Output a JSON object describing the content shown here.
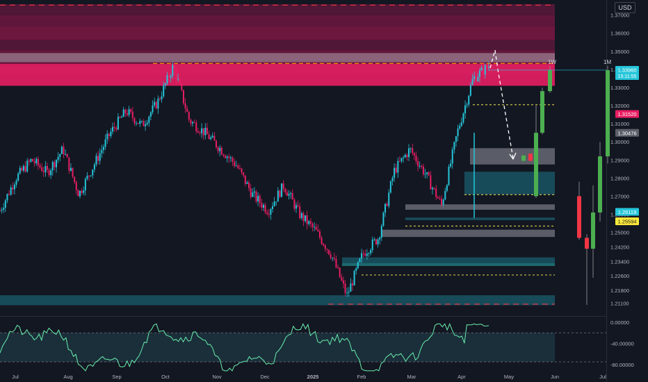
{
  "chart_data": {
    "type": "candlestick",
    "currency": "USD",
    "price_axis": {
      "min": 1.205,
      "max": 1.376,
      "ticks": [
        "1.37000",
        "1.36000",
        "1.35000",
        "1.34000",
        "1.33000",
        "1.32000",
        "1.31000",
        "1.30000",
        "1.29000",
        "1.28000",
        "1.27000",
        "1.26000",
        "1.25000",
        "1.24200",
        "1.23400",
        "1.22600",
        "1.21800",
        "1.21100"
      ]
    },
    "time_axis": {
      "labels": [
        "Jul",
        "Aug",
        "Sep",
        "Oct",
        "Nov",
        "Dec",
        "2025",
        "Feb",
        "Mar",
        "Apr",
        "May",
        "Jun",
        "Jul"
      ]
    },
    "price_badges": [
      {
        "value": "1.33960",
        "sub": "15:11:55",
        "price": 1.3396,
        "color": "#26c6da"
      },
      {
        "value": "1.31520",
        "price": 1.3152,
        "color": "#e91e63"
      },
      {
        "value": "1.30476",
        "price": 1.30476,
        "color": "#5d606b"
      },
      {
        "value": "1.26119",
        "price": 1.26119,
        "color": "#26c6da"
      },
      {
        "value": "1.25594",
        "price": 1.25594,
        "color": "#ffeb3b"
      }
    ],
    "timeframe_labels": [
      "1W",
      "1M"
    ],
    "supply_zone": {
      "from": 1.331,
      "to": 1.376,
      "color": "#e91e63"
    },
    "demand_zones": [
      {
        "from": 1.271,
        "to": 1.2835
      },
      {
        "from": 1.2568,
        "to": 1.2582
      },
      {
        "from": 1.2315,
        "to": 1.2362
      },
      {
        "from": 1.2098,
        "to": 1.2153
      }
    ],
    "grey_zones": [
      {
        "from": 1.2875,
        "to": 1.2965
      },
      {
        "from": 1.2625,
        "to": 1.2655
      },
      {
        "from": 1.2475,
        "to": 1.2515
      }
    ],
    "key_levels": [
      {
        "price": 1.3433,
        "style": "orange-dashed"
      },
      {
        "price": 1.3205,
        "style": "yellow-dashed"
      },
      {
        "price": 1.2708,
        "style": "yellow-dashed"
      },
      {
        "price": 1.2535,
        "style": "yellow-dashed"
      },
      {
        "price": 1.2265,
        "style": "yellow-dashed"
      },
      {
        "price": 1.2104,
        "style": "red-dashed"
      },
      {
        "price": 1.3755,
        "style": "red-dashed"
      }
    ],
    "daily_close_path": [
      {
        "x": "Jul",
        "y": 1.262
      },
      {
        "y": 1.28
      },
      {
        "y": 1.29
      },
      {
        "y": 1.283
      },
      {
        "y": 1.296
      },
      {
        "x": "Aug",
        "y": 1.271
      },
      {
        "y": 1.288
      },
      {
        "y": 1.305
      },
      {
        "y": 1.317
      },
      {
        "x": "Sep",
        "y": 1.309
      },
      {
        "y": 1.322
      },
      {
        "y": 1.342
      },
      {
        "x": "Oct",
        "y": 1.312
      },
      {
        "y": 1.305
      },
      {
        "y": 1.296
      },
      {
        "x": "Nov",
        "y": 1.287
      },
      {
        "y": 1.271
      },
      {
        "y": 1.262
      },
      {
        "x": "Dec",
        "y": 1.276
      },
      {
        "y": 1.26
      },
      {
        "y": 1.251
      },
      {
        "x": "2025",
        "y": 1.238
      },
      {
        "y": 1.215
      },
      {
        "x": "Feb",
        "y": 1.238
      },
      {
        "y": 1.247
      },
      {
        "x": "Mar",
        "y": 1.284
      },
      {
        "y": 1.296
      },
      {
        "x": "Apr",
        "y": 1.282
      },
      {
        "y": 1.265
      },
      {
        "y": 1.305
      },
      {
        "y": 1.335
      },
      {
        "y": 1.342
      }
    ],
    "oscillator": {
      "ticks": [
        "0.00000",
        "-40.00000",
        "-80.00000"
      ],
      "min": -100,
      "max": 0
    }
  }
}
